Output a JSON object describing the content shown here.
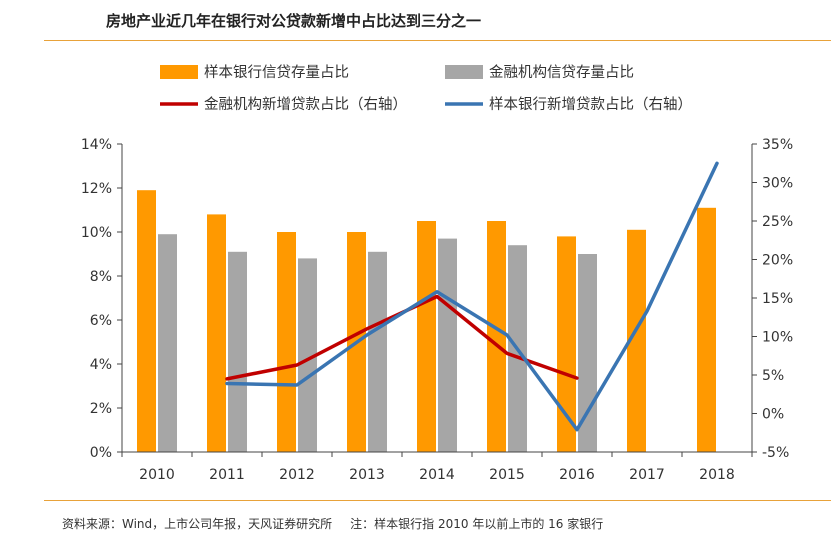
{
  "header": {
    "title": "房地产业近几年在银行对公贷款新增中占比达到三分之一"
  },
  "footer": {
    "source": "资料来源：Wind，上市公司年报，天风证券研究所",
    "note": "注：样本银行指 2010 年以前上市的 16 家银行"
  },
  "colors": {
    "orange": "#FF9900",
    "gray": "#A6A6A6",
    "red": "#C00000",
    "blue": "#3A75B2",
    "axis": "#444444",
    "rule": "#E8A23A"
  },
  "chart_data": {
    "type": "bar",
    "categories": [
      "2010",
      "2011",
      "2012",
      "2013",
      "2014",
      "2015",
      "2016",
      "2017",
      "2018"
    ],
    "series": [
      {
        "name": "样本银行信贷存量占比",
        "kind": "bar",
        "axis": "left",
        "color": "#FF9900",
        "values": [
          11.9,
          10.8,
          10.0,
          10.0,
          10.5,
          10.5,
          9.8,
          10.1,
          11.1
        ]
      },
      {
        "name": "金融机构信贷存量占比",
        "kind": "bar",
        "axis": "left",
        "color": "#A6A6A6",
        "values": [
          9.9,
          9.1,
          8.8,
          9.1,
          9.7,
          9.4,
          9.0,
          null,
          null
        ]
      },
      {
        "name": "金融机构新增贷款占比（右轴）",
        "kind": "line",
        "axis": "right",
        "color": "#C00000",
        "values": [
          null,
          4.5,
          6.3,
          11.0,
          15.2,
          7.8,
          4.6,
          null,
          null
        ]
      },
      {
        "name": "样本银行新增贷款占比（右轴）",
        "kind": "line",
        "axis": "right",
        "color": "#3A75B2",
        "values": [
          null,
          3.9,
          3.7,
          10.2,
          15.8,
          10.2,
          -2.1,
          13.3,
          32.5
        ]
      }
    ],
    "left_axis": {
      "ticks": [
        "0%",
        "2%",
        "4%",
        "6%",
        "8%",
        "10%",
        "12%",
        "14%"
      ],
      "ylim": [
        0,
        14
      ]
    },
    "right_axis": {
      "ticks": [
        "-5%",
        "0%",
        "5%",
        "10%",
        "15%",
        "20%",
        "25%",
        "30%",
        "35%"
      ],
      "ylim": [
        -5,
        35
      ]
    },
    "legend_position": "top",
    "grid": false
  }
}
